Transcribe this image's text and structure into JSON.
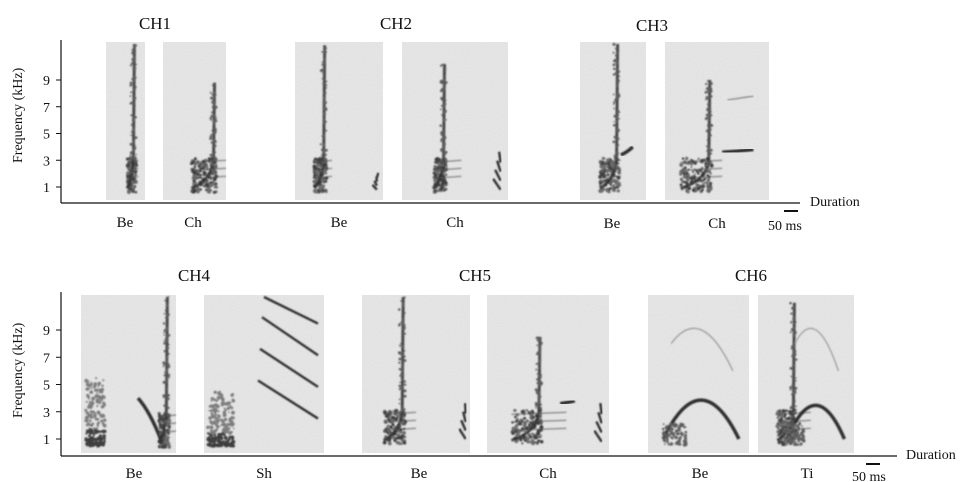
{
  "chart_data": [
    {
      "type": "spectrogram",
      "title": "CH1",
      "ylabel": "Frequency (kHz)",
      "yticks": [
        1,
        3,
        5,
        7,
        9
      ],
      "xlabel": "Duration",
      "scale_bar": "50 ms",
      "panels": [
        {
          "label": "Be",
          "calls": [
            {
              "kind": "sweep",
              "t": [
                0.55,
                0.78
              ],
              "f": [
                1.2,
                11.8
              ],
              "width": 0.28
            }
          ]
        },
        {
          "label": "Ch",
          "calls": [
            {
              "kind": "sweep",
              "t": [
                0.45,
                0.85
              ],
              "f": [
                1.2,
                8.8
              ],
              "width": 0.55
            }
          ]
        }
      ]
    },
    {
      "type": "spectrogram",
      "title": "CH2",
      "ylabel": "Frequency (kHz)",
      "yticks": [
        1,
        3,
        5,
        7,
        9
      ],
      "xlabel": "Duration",
      "scale_bar": "50 ms",
      "panels": [
        {
          "label": "Be",
          "calls": [
            {
              "kind": "sweep",
              "t": [
                0.22,
                0.36
              ],
              "f": [
                1.2,
                11.6
              ],
              "width": 0.2
            },
            {
              "kind": "harmonics",
              "t": [
                0.88,
                0.93
              ],
              "f": [
                0.8,
                2.0
              ]
            }
          ]
        },
        {
          "label": "Ch",
          "calls": [
            {
              "kind": "sweep",
              "t": [
                0.3,
                0.42
              ],
              "f": [
                1.2,
                10.2
              ],
              "width": 0.26
            },
            {
              "kind": "harmonics",
              "t": [
                0.86,
                0.93
              ],
              "f": [
                0.8,
                3.5
              ]
            }
          ]
        }
      ]
    },
    {
      "type": "spectrogram",
      "title": "CH3",
      "ylabel": "Frequency (kHz)",
      "yticks": [
        1,
        3,
        5,
        7,
        9
      ],
      "xlabel": "Duration",
      "scale_bar": "50 ms",
      "panels": [
        {
          "label": "Be",
          "calls": [
            {
              "kind": "sweep",
              "t": [
                0.3,
                0.6
              ],
              "f": [
                1.2,
                11.8
              ],
              "width": 0.32
            },
            {
              "kind": "tone",
              "t": [
                0.62,
                0.8
              ],
              "f": [
                3.4,
                4.0
              ]
            }
          ]
        },
        {
          "label": "Ch",
          "calls": [
            {
              "kind": "sweep",
              "t": [
                0.15,
                0.45
              ],
              "f": [
                1.2,
                9.0
              ],
              "width": 0.4
            },
            {
              "kind": "tone",
              "t": [
                0.55,
                0.85
              ],
              "f": [
                3.6,
                3.8
              ]
            },
            {
              "kind": "faint",
              "t": [
                0.6,
                0.85
              ],
              "f": [
                7.5,
                7.8
              ]
            }
          ]
        }
      ]
    },
    {
      "type": "spectrogram",
      "title": "CH4",
      "ylabel": "Frequency (kHz)",
      "yticks": [
        1,
        3,
        5,
        7,
        9
      ],
      "xlabel": "Duration",
      "scale_bar": "50 ms",
      "panels": [
        {
          "label": "Be",
          "calls": [
            {
              "kind": "burst",
              "t": [
                0.05,
                0.25
              ],
              "f": [
                0.5,
                5.5
              ]
            },
            {
              "kind": "tone",
              "t": [
                0.6,
                0.85
              ],
              "f": [
                4.0,
                0.8
              ]
            },
            {
              "kind": "sweep",
              "t": [
                0.82,
                0.93
              ],
              "f": [
                1.0,
                11.8
              ],
              "width": 0.18
            }
          ]
        },
        {
          "label": "Sh",
          "calls": [
            {
              "kind": "burst",
              "t": [
                0.03,
                0.25
              ],
              "f": [
                0.5,
                4.5
              ]
            },
            {
              "kind": "harmonics",
              "t": [
                0.45,
                0.95
              ],
              "f": [
                2.5,
                11.8
              ]
            }
          ]
        }
      ]
    },
    {
      "type": "spectrogram",
      "title": "CH5",
      "ylabel": "Frequency (kHz)",
      "yticks": [
        1,
        3,
        5,
        7,
        9
      ],
      "xlabel": "Duration",
      "scale_bar": "50 ms",
      "panels": [
        {
          "label": "Be",
          "calls": [
            {
              "kind": "sweep",
              "t": [
                0.2,
                0.4
              ],
              "f": [
                1.2,
                11.8
              ],
              "width": 0.3
            },
            {
              "kind": "tone",
              "t": [
                0.6,
                0.75
              ],
              "f": [
                3.8,
                3.8
              ]
            },
            {
              "kind": "harmonics",
              "t": [
                0.9,
                0.96
              ],
              "f": [
                1.0,
                3.5
              ]
            }
          ]
        },
        {
          "label": "Ch",
          "calls": [
            {
              "kind": "sweep",
              "t": [
                0.2,
                0.45
              ],
              "f": [
                1.2,
                8.5
              ],
              "width": 0.45
            },
            {
              "kind": "tone",
              "t": [
                0.6,
                0.72
              ],
              "f": [
                3.6,
                3.8
              ]
            },
            {
              "kind": "harmonics",
              "t": [
                0.88,
                0.94
              ],
              "f": [
                0.8,
                3.5
              ]
            }
          ]
        }
      ]
    },
    {
      "type": "spectrogram",
      "title": "CH6",
      "ylabel": "Frequency (kHz)",
      "yticks": [
        1,
        3,
        5,
        7,
        9
      ],
      "xlabel": "Duration",
      "scale_bar": "50 ms",
      "panels": [
        {
          "label": "Be",
          "calls": [
            {
              "kind": "arch",
              "t": [
                0.15,
                0.9
              ],
              "f": [
                1.0,
                4.0
              ]
            }
          ]
        },
        {
          "label": "Ti",
          "calls": [
            {
              "kind": "sweep",
              "t": [
                0.2,
                0.4
              ],
              "f": [
                1.2,
                11.0
              ],
              "width": 0.35
            },
            {
              "kind": "arch",
              "t": [
                0.3,
                0.9
              ],
              "f": [
                1.0,
                3.6
              ]
            }
          ]
        }
      ]
    }
  ]
}
